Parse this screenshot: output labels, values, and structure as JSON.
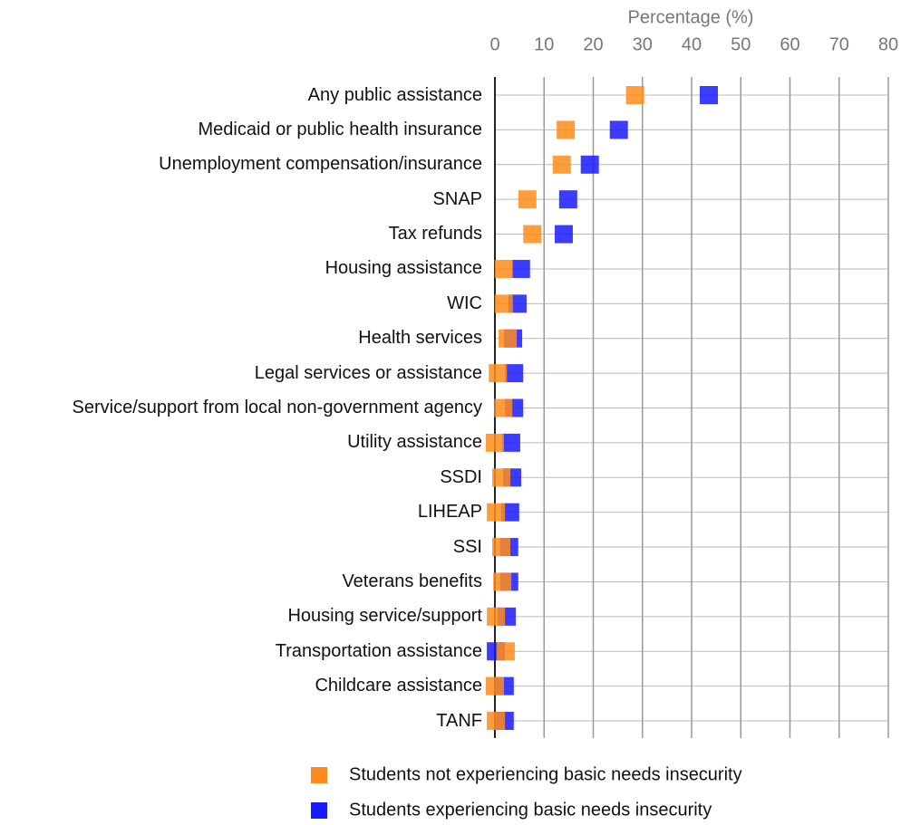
{
  "chart_data": {
    "type": "dot",
    "x_label": "Percentage (%)",
    "categories": [
      "Any public assistance",
      "Medicaid or public health insurance",
      "Unemployment compensation/insurance",
      "SNAP",
      "Tax refunds",
      "Housing assistance",
      "WIC",
      "Health services",
      "Legal services or assistance",
      "Service/support from local non-government agency",
      "Utility assistance",
      "SSDI",
      "LIHEAP",
      "SSI",
      "Veterans benefits",
      "Housing service/support",
      "Transportation assistance",
      "Childcare assistance",
      "TANF"
    ],
    "series": [
      {
        "name": "Students not experiencing basic needs insecurity",
        "color": "#ff8c1a",
        "values": [
          28.5,
          14.4,
          13.6,
          6.6,
          7.6,
          1.8,
          1.8,
          2.6,
          0.6,
          1.7,
          0,
          1.3,
          0.2,
          1.3,
          1.5,
          0.2,
          2.2,
          0,
          0.2
        ]
      },
      {
        "name": "Students experiencing basic needs insecurity",
        "color": "#1a1aff",
        "values": [
          43.5,
          25.2,
          19.3,
          14.9,
          14.0,
          5.3,
          4.6,
          3.7,
          3.9,
          3.9,
          3.3,
          3.5,
          3.1,
          2.9,
          2.9,
          2.4,
          0.2,
          2.0,
          2.0
        ]
      }
    ],
    "xlim": [
      0,
      80
    ],
    "xticks": [
      0,
      10,
      20,
      30,
      40,
      50,
      60,
      70,
      80
    ],
    "grid": true
  }
}
